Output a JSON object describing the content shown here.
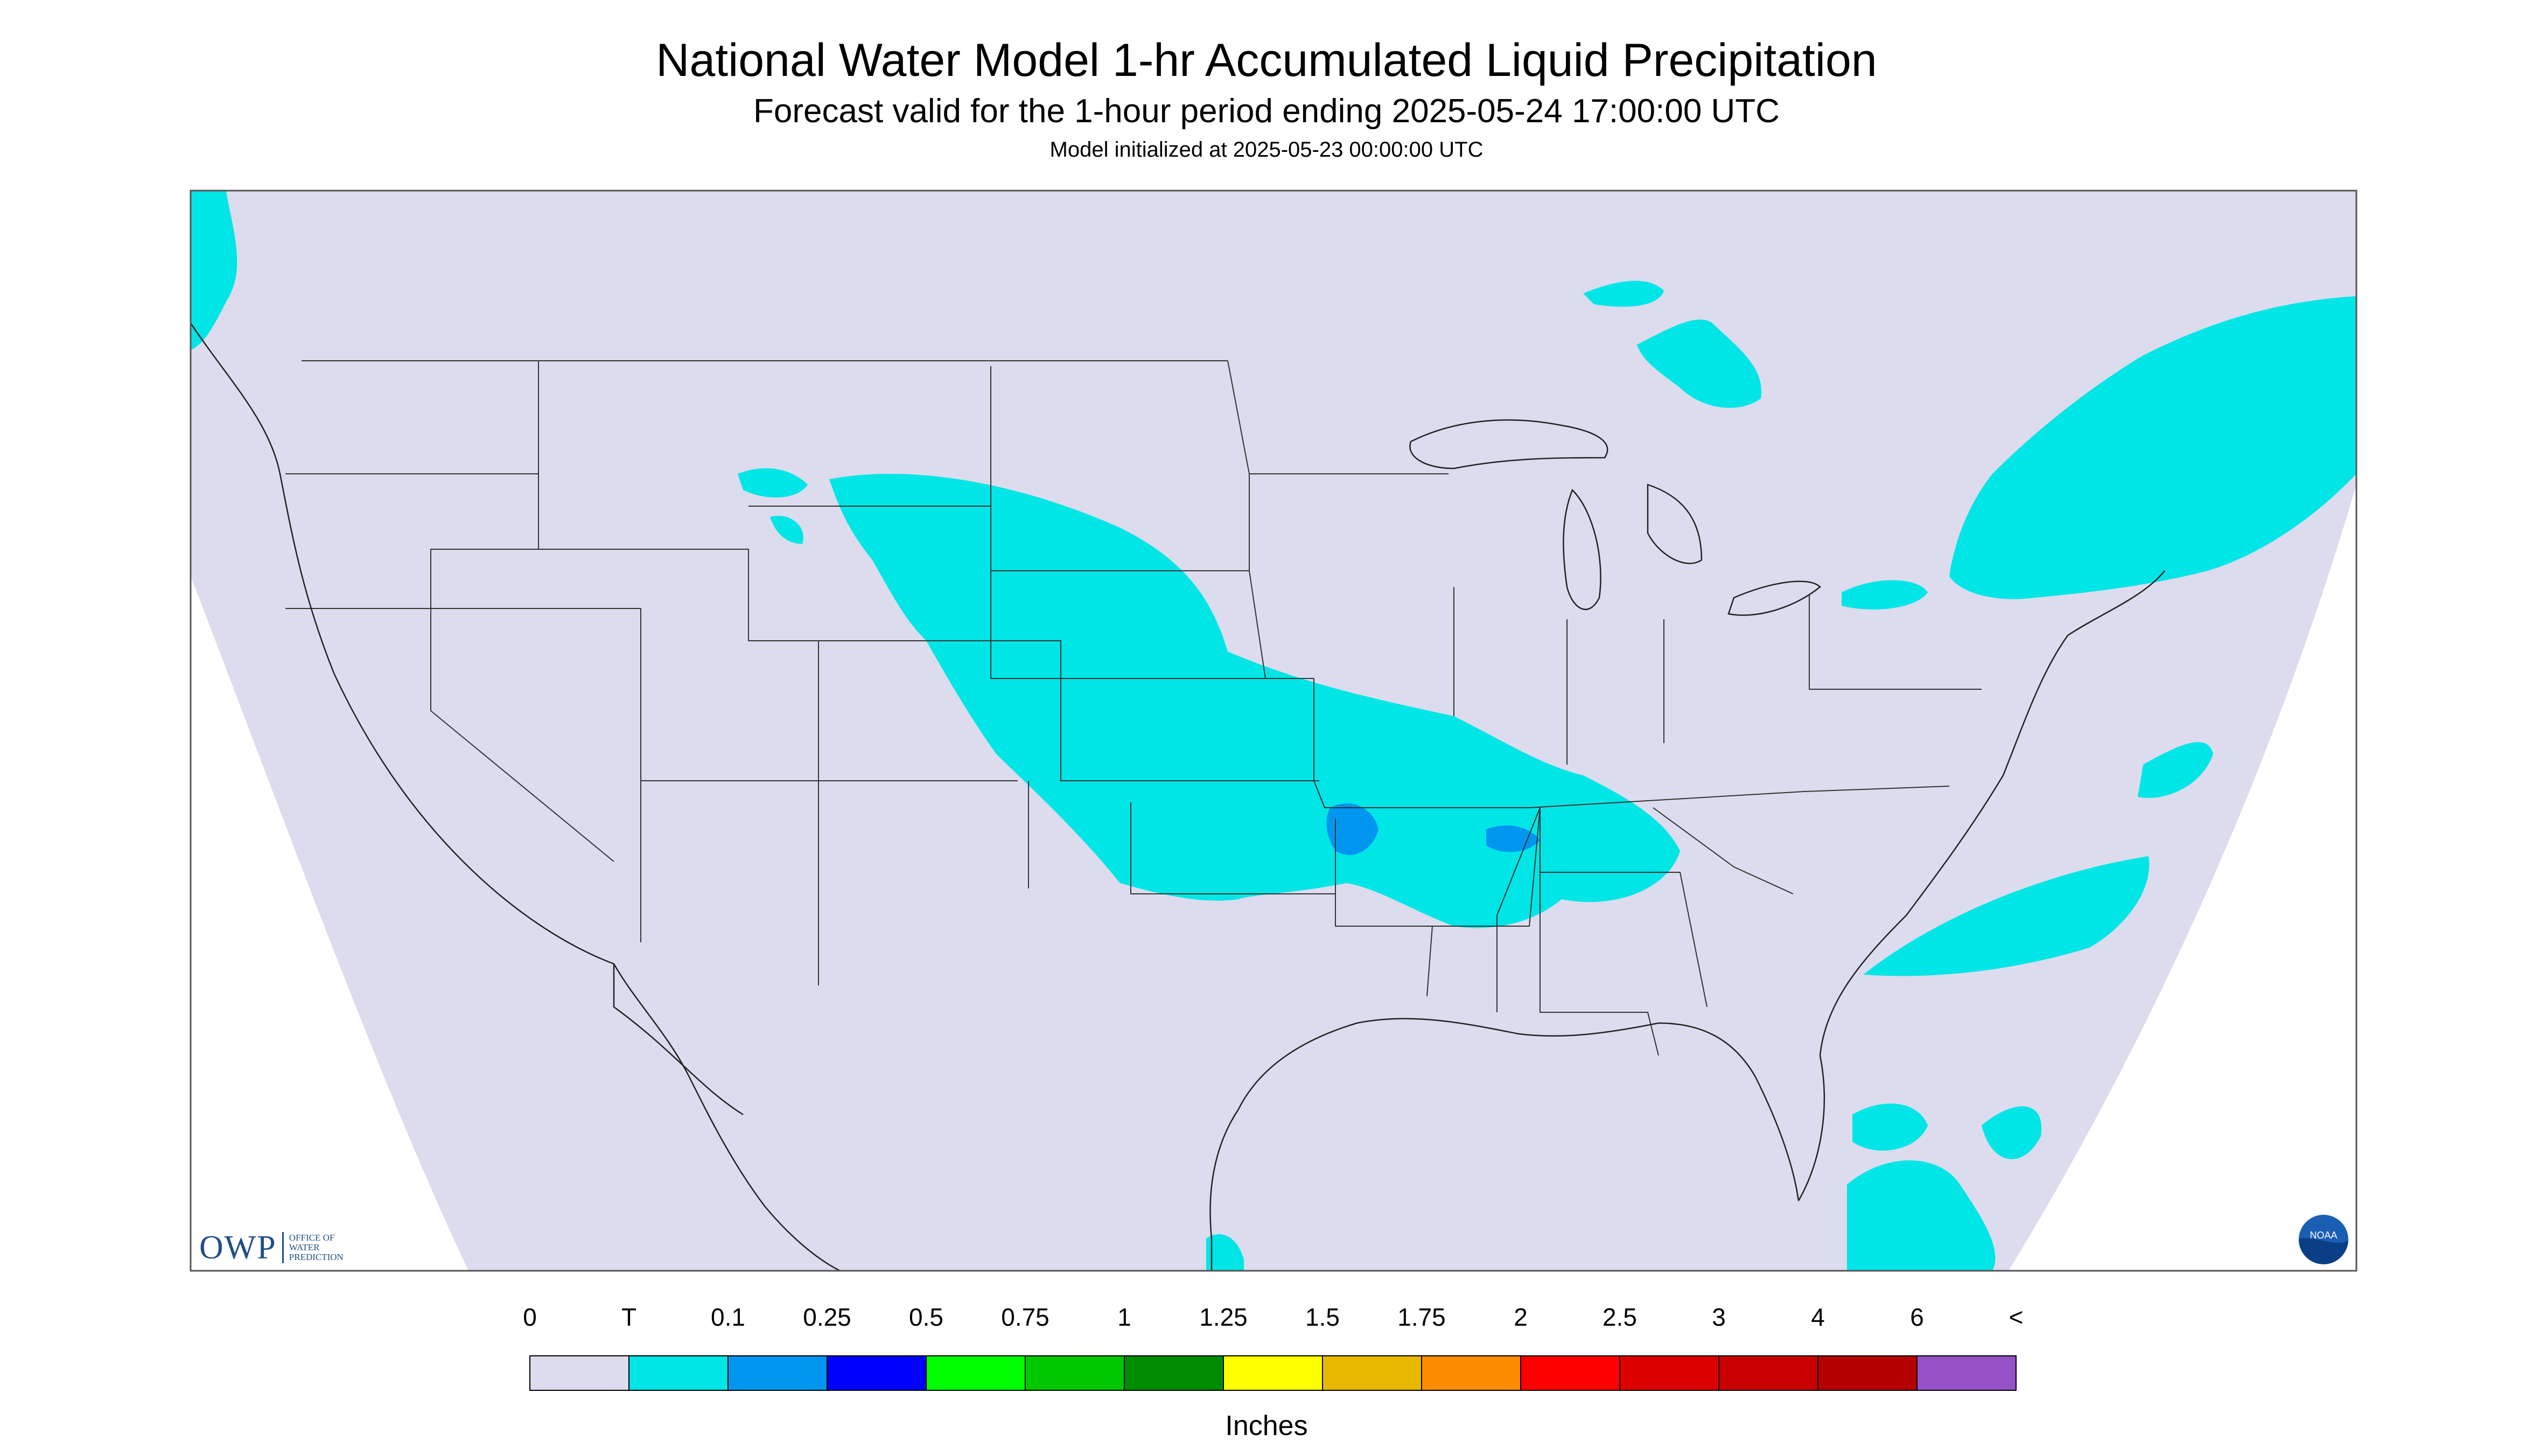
{
  "header": {
    "title": "National Water Model 1-hr Accumulated Liquid Precipitation",
    "subtitle": "Forecast valid for the 1-hour period ending 2025-05-24 17:00:00 UTC",
    "init": "Model initialized at 2025-05-23 00:00:00 UTC"
  },
  "logos": {
    "owp_letters": "OWP",
    "owp_lines": [
      "OFFICE OF",
      "WATER",
      "PREDICTION"
    ],
    "noaa": "NOAA"
  },
  "colors": {
    "background_domain": "#dcdcee",
    "outside": "#ffffff",
    "trace": "#00e5e5",
    "light_blue": "#0096f0"
  },
  "legend": {
    "units": "Inches",
    "labels": [
      "0",
      "T",
      "0.1",
      "0.25",
      "0.5",
      "0.75",
      "1",
      "1.25",
      "1.5",
      "1.75",
      "2",
      "2.5",
      "3",
      "4",
      "6",
      "<"
    ],
    "colors": [
      "#dcdcee",
      "#00e5e5",
      "#0096f0",
      "#0000ff",
      "#00ff00",
      "#00c800",
      "#008c00",
      "#ffff00",
      "#e6b800",
      "#ff8c00",
      "#ff0000",
      "#dc0000",
      "#c80000",
      "#b40000",
      "#ff00ff",
      "#9650c8"
    ]
  }
}
